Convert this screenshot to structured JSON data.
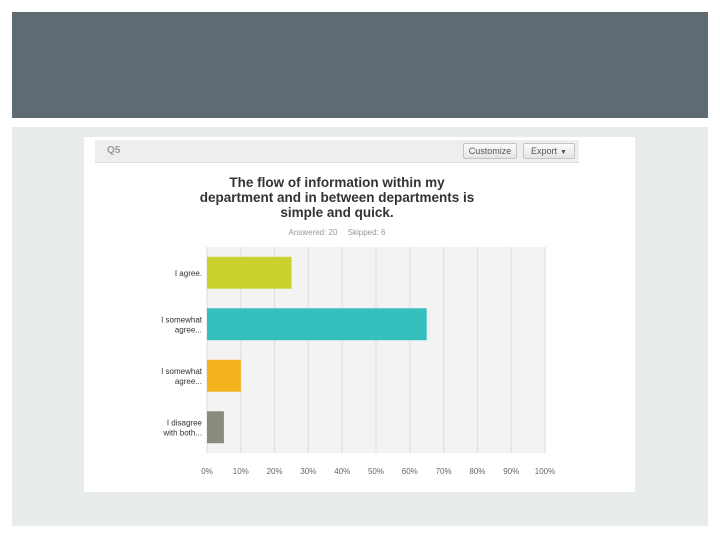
{
  "panel": {
    "question": "Q5",
    "customize_label": "Customize",
    "export_label": "Export",
    "export_caret": "▼",
    "answered_text": "Answered: 20",
    "skipped_text": "Skipped: 6"
  },
  "chart_data": {
    "type": "bar",
    "orientation": "horizontal",
    "title_lines": [
      "The flow of information within my",
      "department and in between departments is",
      "simple and quick."
    ],
    "categories": [
      [
        "I agree."
      ],
      [
        "I somewhat",
        "agree..."
      ],
      [
        "I somewhat",
        "agree..."
      ],
      [
        "I disagree",
        "with both..."
      ]
    ],
    "values": [
      25,
      65,
      10,
      5
    ],
    "colors": [
      "#c8d12e",
      "#35bfbd",
      "#f5b21f",
      "#8a8a7e"
    ],
    "xlim": [
      0,
      100
    ],
    "ticks": [
      0,
      10,
      20,
      30,
      40,
      50,
      60,
      70,
      80,
      90,
      100
    ],
    "tick_labels": [
      "0%",
      "10%",
      "20%",
      "30%",
      "40%",
      "50%",
      "60%",
      "70%",
      "80%",
      "90%",
      "100%"
    ],
    "grid": true
  },
  "colors": {
    "header_band": "#5f6b72",
    "content_band": "#e8ecec",
    "grid_line": "#dddddd",
    "plot_background": "#f3f3f3"
  }
}
